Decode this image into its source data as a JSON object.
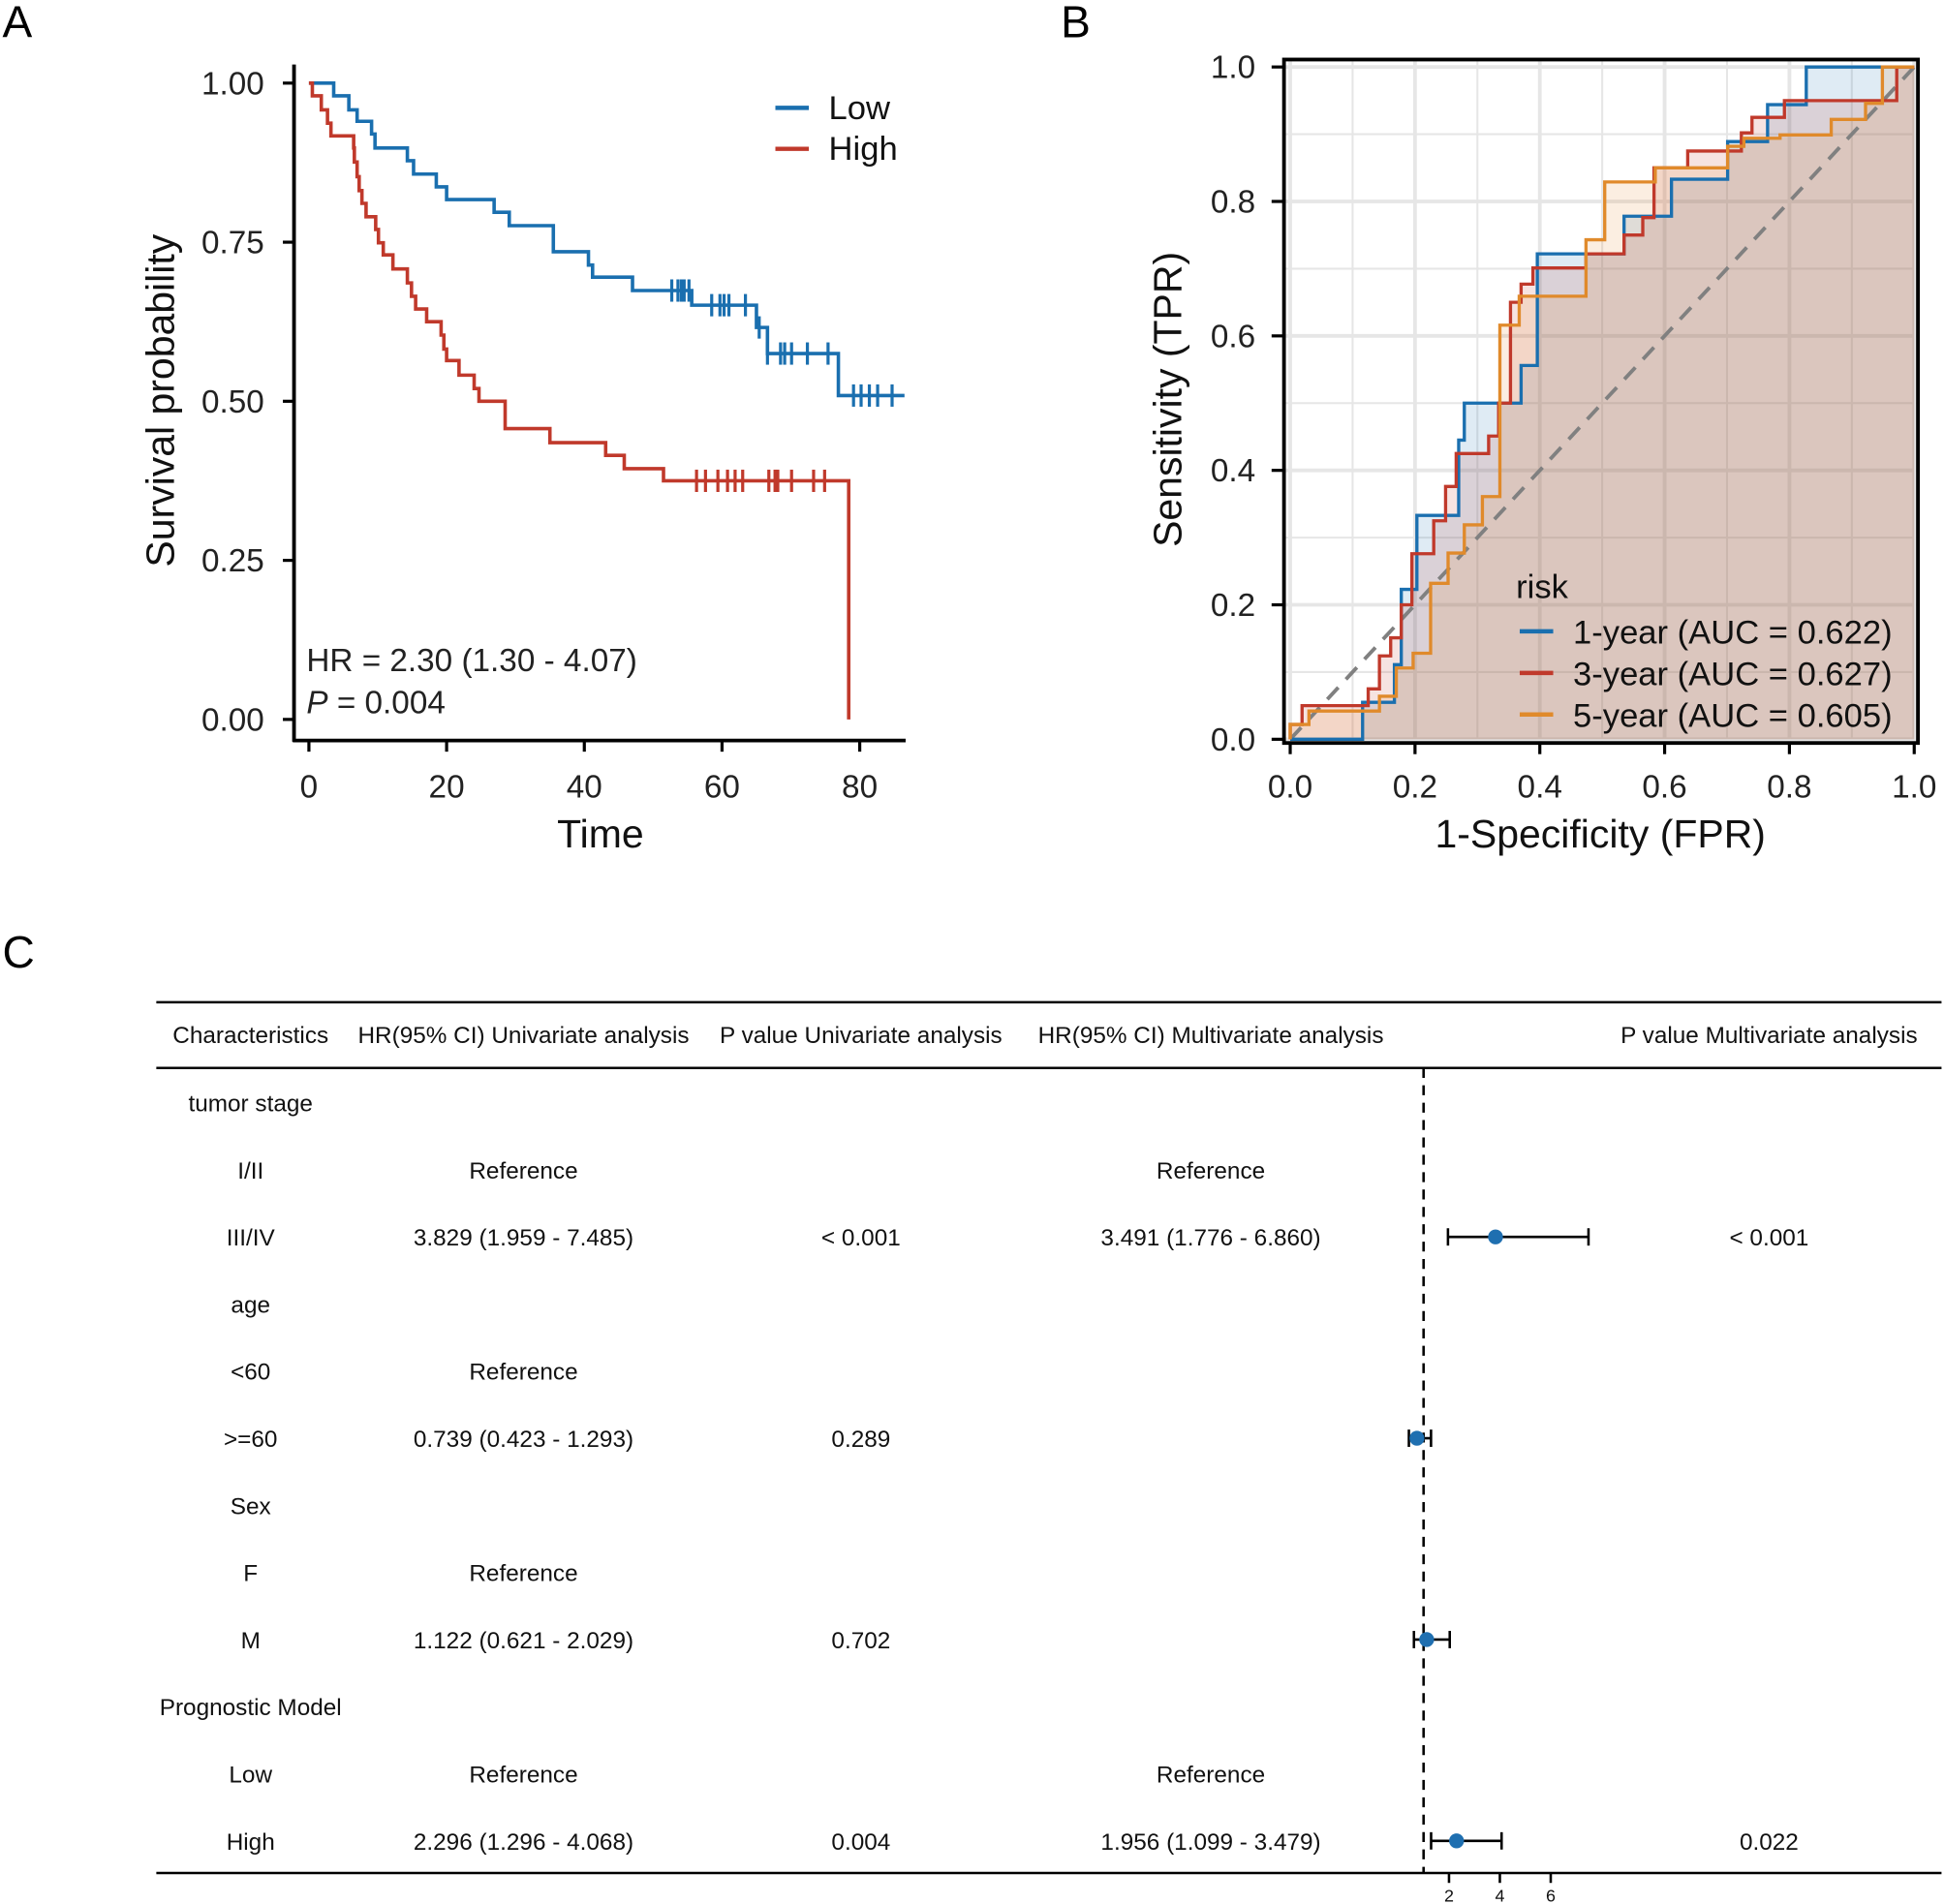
{
  "panel_labels": {
    "a": "A",
    "b": "B",
    "c": "C"
  },
  "colors": {
    "low": "#1A6FAF",
    "high": "#C0392B",
    "y1": "#1A6FAF",
    "y3": "#C0392B",
    "y5": "#E08A2B",
    "diag": "#808080",
    "point": "#1F6FB0"
  },
  "chart_data": [
    {
      "type": "line",
      "title": "",
      "xlabel": "Time",
      "ylabel": "Survival probability",
      "xlim": [
        0,
        86.5
      ],
      "ylim": [
        0,
        1
      ],
      "xticks": [
        "0",
        "20",
        "40",
        "60",
        "80"
      ],
      "yticks": [
        "0.00",
        "0.25",
        "0.50",
        "0.75",
        "1.00"
      ],
      "legend_position": "top-right",
      "annotation": {
        "hr": "HR = 2.30 (1.30 -  4.07)",
        "p_label": "P",
        "p_value": "= 0.004"
      },
      "series": [
        {
          "name": "Low",
          "color_key": "low",
          "end": 86.5,
          "steps": [
            [
              0,
              1
            ],
            [
              3.6,
              0.98
            ],
            [
              5.8,
              0.958
            ],
            [
              7.0,
              0.94
            ],
            [
              9.1,
              0.92
            ],
            [
              9.6,
              0.898
            ],
            [
              14.3,
              0.878
            ],
            [
              15.2,
              0.857
            ],
            [
              18.5,
              0.837
            ],
            [
              20.0,
              0.817
            ],
            [
              26.9,
              0.797
            ],
            [
              29.1,
              0.776
            ],
            [
              35.5,
              0.735
            ],
            [
              40.6,
              0.714
            ],
            [
              41.2,
              0.695
            ],
            [
              47.0,
              0.674
            ],
            [
              55.6,
              0.651
            ],
            [
              65.0,
              0.616
            ],
            [
              66.6,
              0.575
            ],
            [
              76.9,
              0.509
            ]
          ],
          "censored": [
            52.7,
            53.6,
            54.1,
            54.5,
            55.2,
            58.5,
            59.7,
            60.3,
            61.0,
            63.4,
            65.4,
            66.6,
            68.5,
            69.1,
            70.1,
            72.4,
            75.4,
            79.1,
            80.2,
            81.4,
            82.6,
            84.7
          ]
        },
        {
          "name": "High",
          "color_key": "high",
          "end": 78.4,
          "steps": [
            [
              0,
              1
            ],
            [
              0.5,
              0.98
            ],
            [
              1.8,
              0.958
            ],
            [
              2.7,
              0.937
            ],
            [
              3.2,
              0.917
            ],
            [
              6.5,
              0.898
            ],
            [
              6.6,
              0.876
            ],
            [
              7.0,
              0.853
            ],
            [
              7.3,
              0.831
            ],
            [
              7.7,
              0.811
            ],
            [
              8.3,
              0.79
            ],
            [
              9.7,
              0.77
            ],
            [
              10.1,
              0.749
            ],
            [
              10.8,
              0.73
            ],
            [
              12.2,
              0.708
            ],
            [
              14.3,
              0.686
            ],
            [
              14.9,
              0.665
            ],
            [
              15.5,
              0.645
            ],
            [
              17.1,
              0.625
            ],
            [
              19.2,
              0.604
            ],
            [
              19.6,
              0.582
            ],
            [
              20.0,
              0.564
            ],
            [
              21.8,
              0.541
            ],
            [
              24.0,
              0.52
            ],
            [
              24.7,
              0.5
            ],
            [
              28.5,
              0.457
            ],
            [
              35.0,
              0.435
            ],
            [
              43.1,
              0.415
            ],
            [
              45.8,
              0.394
            ],
            [
              51.5,
              0.375
            ],
            [
              78.4,
              0
            ]
          ],
          "censored": [
            56.3,
            57.6,
            59.4,
            60.8,
            61.9,
            63.0,
            66.8,
            67.7,
            68.1,
            70.1,
            73.3,
            74.9
          ]
        }
      ]
    },
    {
      "type": "line",
      "title": "",
      "xlabel": "1-Specificity (FPR)",
      "ylabel": "Sensitivity (TPR)",
      "xlim": [
        0,
        1
      ],
      "ylim": [
        0,
        1
      ],
      "xticks": [
        "0.0",
        "0.2",
        "0.4",
        "0.6",
        "0.8",
        "1.0"
      ],
      "yticks": [
        "0.0",
        "0.2",
        "0.4",
        "0.6",
        "0.8",
        "1.0"
      ],
      "grid": true,
      "legend_title": "risk",
      "legend_position": "bottom-right",
      "series": [
        {
          "name": "1-year (AUC = 0.622)",
          "color_key": "y1",
          "points": [
            [
              0,
              0
            ],
            [
              0.116,
              0
            ],
            [
              0.116,
              0.055
            ],
            [
              0.167,
              0.055
            ],
            [
              0.167,
              0.111
            ],
            [
              0.178,
              0.111
            ],
            [
              0.178,
              0.223
            ],
            [
              0.203,
              0.223
            ],
            [
              0.203,
              0.333
            ],
            [
              0.27,
              0.333
            ],
            [
              0.27,
              0.445
            ],
            [
              0.279,
              0.445
            ],
            [
              0.279,
              0.5
            ],
            [
              0.37,
              0.5
            ],
            [
              0.37,
              0.556
            ],
            [
              0.396,
              0.556
            ],
            [
              0.396,
              0.722
            ],
            [
              0.535,
              0.722
            ],
            [
              0.535,
              0.778
            ],
            [
              0.611,
              0.778
            ],
            [
              0.611,
              0.833
            ],
            [
              0.701,
              0.833
            ],
            [
              0.701,
              0.889
            ],
            [
              0.765,
              0.889
            ],
            [
              0.765,
              0.944
            ],
            [
              0.827,
              0.944
            ],
            [
              0.827,
              1
            ],
            [
              1,
              1
            ]
          ]
        },
        {
          "name": "3-year (AUC = 0.627)",
          "color_key": "y3",
          "points": [
            [
              0,
              0
            ],
            [
              0,
              0.022
            ],
            [
              0.019,
              0.022
            ],
            [
              0.019,
              0.05
            ],
            [
              0.125,
              0.05
            ],
            [
              0.125,
              0.075
            ],
            [
              0.143,
              0.075
            ],
            [
              0.143,
              0.124
            ],
            [
              0.161,
              0.124
            ],
            [
              0.161,
              0.151
            ],
            [
              0.178,
              0.151
            ],
            [
              0.178,
              0.2
            ],
            [
              0.195,
              0.2
            ],
            [
              0.195,
              0.276
            ],
            [
              0.23,
              0.276
            ],
            [
              0.23,
              0.325
            ],
            [
              0.249,
              0.325
            ],
            [
              0.249,
              0.376
            ],
            [
              0.266,
              0.376
            ],
            [
              0.266,
              0.425
            ],
            [
              0.318,
              0.425
            ],
            [
              0.318,
              0.451
            ],
            [
              0.334,
              0.451
            ],
            [
              0.334,
              0.5
            ],
            [
              0.353,
              0.5
            ],
            [
              0.353,
              0.65
            ],
            [
              0.37,
              0.65
            ],
            [
              0.37,
              0.677
            ],
            [
              0.389,
              0.677
            ],
            [
              0.389,
              0.701
            ],
            [
              0.474,
              0.701
            ],
            [
              0.474,
              0.722
            ],
            [
              0.535,
              0.722
            ],
            [
              0.535,
              0.75
            ],
            [
              0.565,
              0.75
            ],
            [
              0.565,
              0.776
            ],
            [
              0.583,
              0.776
            ],
            [
              0.583,
              0.85
            ],
            [
              0.637,
              0.85
            ],
            [
              0.637,
              0.875
            ],
            [
              0.723,
              0.875
            ],
            [
              0.723,
              0.902
            ],
            [
              0.74,
              0.902
            ],
            [
              0.74,
              0.925
            ],
            [
              0.792,
              0.925
            ],
            [
              0.792,
              0.95
            ],
            [
              0.972,
              0.95
            ],
            [
              0.972,
              1
            ],
            [
              1,
              1
            ]
          ]
        },
        {
          "name": "5-year (AUC = 0.605)",
          "color_key": "y5",
          "points": [
            [
              0,
              0
            ],
            [
              0,
              0.022
            ],
            [
              0.03,
              0.022
            ],
            [
              0.03,
              0.042
            ],
            [
              0.143,
              0.042
            ],
            [
              0.143,
              0.064
            ],
            [
              0.17,
              0.064
            ],
            [
              0.17,
              0.106
            ],
            [
              0.197,
              0.106
            ],
            [
              0.197,
              0.128
            ],
            [
              0.225,
              0.128
            ],
            [
              0.225,
              0.232
            ],
            [
              0.253,
              0.232
            ],
            [
              0.253,
              0.277
            ],
            [
              0.279,
              0.277
            ],
            [
              0.279,
              0.319
            ],
            [
              0.308,
              0.319
            ],
            [
              0.308,
              0.361
            ],
            [
              0.336,
              0.361
            ],
            [
              0.336,
              0.616
            ],
            [
              0.367,
              0.616
            ],
            [
              0.367,
              0.659
            ],
            [
              0.474,
              0.659
            ],
            [
              0.474,
              0.743
            ],
            [
              0.504,
              0.743
            ],
            [
              0.504,
              0.829
            ],
            [
              0.585,
              0.829
            ],
            [
              0.585,
              0.85
            ],
            [
              0.701,
              0.85
            ],
            [
              0.701,
              0.882
            ],
            [
              0.727,
              0.882
            ],
            [
              0.727,
              0.894
            ],
            [
              0.785,
              0.894
            ],
            [
              0.785,
              0.899
            ],
            [
              0.867,
              0.899
            ],
            [
              0.867,
              0.922
            ],
            [
              0.922,
              0.922
            ],
            [
              0.922,
              0.946
            ],
            [
              0.949,
              0.946
            ],
            [
              0.949,
              1
            ],
            [
              1,
              1
            ]
          ]
        }
      ]
    },
    {
      "type": "table",
      "headers": [
        "Characteristics",
        "HR(95% CI) Univariate analysis",
        "P value Univariate analysis",
        "HR(95% CI) Multivariate analysis",
        "P value Multivariate analysis"
      ],
      "xticks": [
        "2",
        "4",
        "6"
      ],
      "xtick_values": [
        2,
        4,
        6
      ],
      "reference_line": 1,
      "rows": [
        {
          "label": "tumor stage",
          "hr_uni": "",
          "p_uni": "",
          "hr_multi": "",
          "p_multi": ""
        },
        {
          "label": "I/II",
          "hr_uni": "Reference",
          "p_uni": "",
          "hr_multi": "Reference",
          "p_multi": ""
        },
        {
          "label": "III/IV",
          "hr_uni": "3.829 (1.959 - 7.485)",
          "p_uni": "< 0.001",
          "hr_multi": "3.491 (1.776 - 6.860)",
          "p_multi": "< 0.001",
          "est": 3.829,
          "lo": 1.959,
          "hi": 7.485
        },
        {
          "label": "age",
          "hr_uni": "",
          "p_uni": "",
          "hr_multi": "",
          "p_multi": ""
        },
        {
          "label": "<60",
          "hr_uni": "Reference",
          "p_uni": "",
          "hr_multi": "",
          "p_multi": ""
        },
        {
          "label": ">=60",
          "hr_uni": "0.739 (0.423 - 1.293)",
          "p_uni": "0.289",
          "hr_multi": "",
          "p_multi": "",
          "est": 0.739,
          "lo": 0.423,
          "hi": 1.293
        },
        {
          "label": "Sex",
          "hr_uni": "",
          "p_uni": "",
          "hr_multi": "",
          "p_multi": ""
        },
        {
          "label": "F",
          "hr_uni": "Reference",
          "p_uni": "",
          "hr_multi": "",
          "p_multi": ""
        },
        {
          "label": "M",
          "hr_uni": "1.122 (0.621 - 2.029)",
          "p_uni": "0.702",
          "hr_multi": "",
          "p_multi": "",
          "est": 1.122,
          "lo": 0.621,
          "hi": 2.029
        },
        {
          "label": "Prognostic Model",
          "hr_uni": "",
          "p_uni": "",
          "hr_multi": "",
          "p_multi": ""
        },
        {
          "label": "Low",
          "hr_uni": "Reference",
          "p_uni": "",
          "hr_multi": "Reference",
          "p_multi": ""
        },
        {
          "label": "High",
          "hr_uni": "2.296 (1.296 - 4.068)",
          "p_uni": "0.004",
          "hr_multi": "1.956 (1.099 - 3.479)",
          "p_multi": "0.022",
          "est": 2.296,
          "lo": 1.296,
          "hi": 4.068
        }
      ]
    }
  ]
}
